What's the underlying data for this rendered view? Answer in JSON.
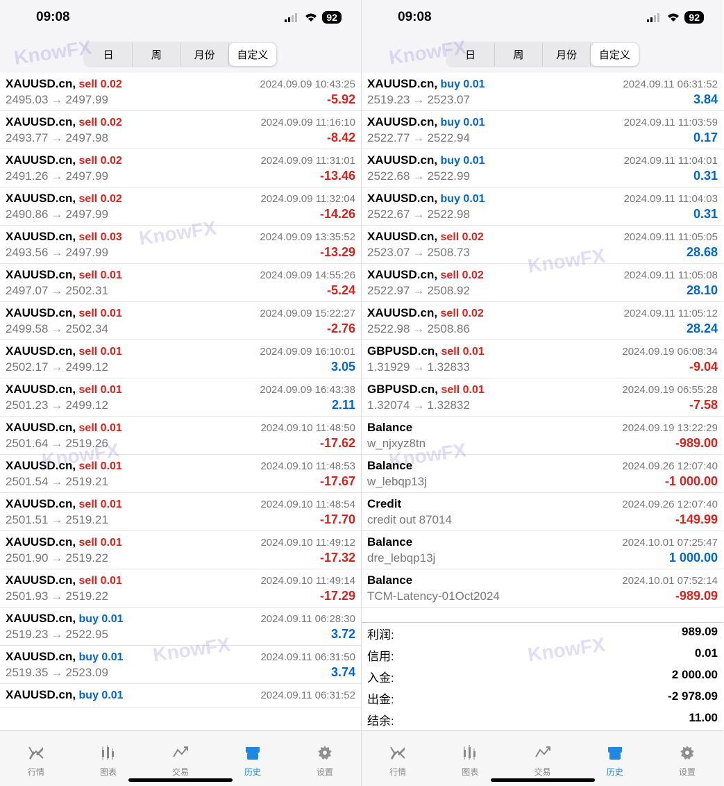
{
  "status": {
    "time": "09:08",
    "battery": "92"
  },
  "segments": {
    "items": [
      "日",
      "周",
      "月份",
      "自定义"
    ],
    "active_index": 3
  },
  "watermark_text": "KnowFX",
  "left_rows": [
    {
      "symbol": "XAUUSD.cn",
      "side": "sell",
      "vol": "0.02",
      "ts": "2024.09.09 10:43:25",
      "p1": "2495.03",
      "p2": "2497.99",
      "profit": "-5.92",
      "sign": "neg"
    },
    {
      "symbol": "XAUUSD.cn",
      "side": "sell",
      "vol": "0.02",
      "ts": "2024.09.09 11:16:10",
      "p1": "2493.77",
      "p2": "2497.98",
      "profit": "-8.42",
      "sign": "neg"
    },
    {
      "symbol": "XAUUSD.cn",
      "side": "sell",
      "vol": "0.02",
      "ts": "2024.09.09 11:31:01",
      "p1": "2491.26",
      "p2": "2497.99",
      "profit": "-13.46",
      "sign": "neg"
    },
    {
      "symbol": "XAUUSD.cn",
      "side": "sell",
      "vol": "0.02",
      "ts": "2024.09.09 11:32:04",
      "p1": "2490.86",
      "p2": "2497.99",
      "profit": "-14.26",
      "sign": "neg"
    },
    {
      "symbol": "XAUUSD.cn",
      "side": "sell",
      "vol": "0.03",
      "ts": "2024.09.09 13:35:52",
      "p1": "2493.56",
      "p2": "2497.99",
      "profit": "-13.29",
      "sign": "neg"
    },
    {
      "symbol": "XAUUSD.cn",
      "side": "sell",
      "vol": "0.01",
      "ts": "2024.09.09 14:55:26",
      "p1": "2497.07",
      "p2": "2502.31",
      "profit": "-5.24",
      "sign": "neg"
    },
    {
      "symbol": "XAUUSD.cn",
      "side": "sell",
      "vol": "0.01",
      "ts": "2024.09.09 15:22:27",
      "p1": "2499.58",
      "p2": "2502.34",
      "profit": "-2.76",
      "sign": "neg"
    },
    {
      "symbol": "XAUUSD.cn",
      "side": "sell",
      "vol": "0.01",
      "ts": "2024.09.09 16:10:01",
      "p1": "2502.17",
      "p2": "2499.12",
      "profit": "3.05",
      "sign": "pos"
    },
    {
      "symbol": "XAUUSD.cn",
      "side": "sell",
      "vol": "0.01",
      "ts": "2024.09.09 16:43:38",
      "p1": "2501.23",
      "p2": "2499.12",
      "profit": "2.11",
      "sign": "pos"
    },
    {
      "symbol": "XAUUSD.cn",
      "side": "sell",
      "vol": "0.01",
      "ts": "2024.09.10 11:48:50",
      "p1": "2501.64",
      "p2": "2519.26",
      "profit": "-17.62",
      "sign": "neg"
    },
    {
      "symbol": "XAUUSD.cn",
      "side": "sell",
      "vol": "0.01",
      "ts": "2024.09.10 11:48:53",
      "p1": "2501.54",
      "p2": "2519.21",
      "profit": "-17.67",
      "sign": "neg"
    },
    {
      "symbol": "XAUUSD.cn",
      "side": "sell",
      "vol": "0.01",
      "ts": "2024.09.10 11:48:54",
      "p1": "2501.51",
      "p2": "2519.21",
      "profit": "-17.70",
      "sign": "neg"
    },
    {
      "symbol": "XAUUSD.cn",
      "side": "sell",
      "vol": "0.01",
      "ts": "2024.09.10 11:49:12",
      "p1": "2501.90",
      "p2": "2519.22",
      "profit": "-17.32",
      "sign": "neg"
    },
    {
      "symbol": "XAUUSD.cn",
      "side": "sell",
      "vol": "0.01",
      "ts": "2024.09.10 11:49:14",
      "p1": "2501.93",
      "p2": "2519.22",
      "profit": "-17.29",
      "sign": "neg"
    },
    {
      "symbol": "XAUUSD.cn",
      "side": "buy",
      "vol": "0.01",
      "ts": "2024.09.11 06:28:30",
      "p1": "2519.23",
      "p2": "2522.95",
      "profit": "3.72",
      "sign": "pos"
    },
    {
      "symbol": "XAUUSD.cn",
      "side": "buy",
      "vol": "0.01",
      "ts": "2024.09.11 06:31:50",
      "p1": "2519.35",
      "p2": "2523.09",
      "profit": "3.74",
      "sign": "pos"
    },
    {
      "symbol": "XAUUSD.cn",
      "side": "buy",
      "vol": "0.01",
      "ts": "2024.09.11 06:31:52",
      "p1": "",
      "p2": "",
      "profit": "",
      "sign": "pos"
    }
  ],
  "right_rows": [
    {
      "type": "trade",
      "symbol": "XAUUSD.cn",
      "side": "buy",
      "vol": "0.01",
      "ts": "2024.09.11 06:31:52",
      "p1": "2519.23",
      "p2": "2523.07",
      "profit": "3.84",
      "sign": "pos"
    },
    {
      "type": "trade",
      "symbol": "XAUUSD.cn",
      "side": "buy",
      "vol": "0.01",
      "ts": "2024.09.11 11:03:59",
      "p1": "2522.77",
      "p2": "2522.94",
      "profit": "0.17",
      "sign": "pos"
    },
    {
      "type": "trade",
      "symbol": "XAUUSD.cn",
      "side": "buy",
      "vol": "0.01",
      "ts": "2024.09.11 11:04:01",
      "p1": "2522.68",
      "p2": "2522.99",
      "profit": "0.31",
      "sign": "pos"
    },
    {
      "type": "trade",
      "symbol": "XAUUSD.cn",
      "side": "buy",
      "vol": "0.01",
      "ts": "2024.09.11 11:04:03",
      "p1": "2522.67",
      "p2": "2522.98",
      "profit": "0.31",
      "sign": "pos"
    },
    {
      "type": "trade",
      "symbol": "XAUUSD.cn",
      "side": "sell",
      "vol": "0.02",
      "ts": "2024.09.11 11:05:05",
      "p1": "2523.07",
      "p2": "2508.73",
      "profit": "28.68",
      "sign": "pos"
    },
    {
      "type": "trade",
      "symbol": "XAUUSD.cn",
      "side": "sell",
      "vol": "0.02",
      "ts": "2024.09.11 11:05:08",
      "p1": "2522.97",
      "p2": "2508.92",
      "profit": "28.10",
      "sign": "pos"
    },
    {
      "type": "trade",
      "symbol": "XAUUSD.cn",
      "side": "sell",
      "vol": "0.02",
      "ts": "2024.09.11 11:05:12",
      "p1": "2522.98",
      "p2": "2508.86",
      "profit": "28.24",
      "sign": "pos"
    },
    {
      "type": "trade",
      "symbol": "GBPUSD.cn",
      "side": "sell",
      "vol": "0.01",
      "ts": "2024.09.19 06:08:34",
      "p1": "1.31929",
      "p2": "1.32833",
      "profit": "-9.04",
      "sign": "neg"
    },
    {
      "type": "trade",
      "symbol": "GBPUSD.cn",
      "side": "sell",
      "vol": "0.01",
      "ts": "2024.09.19 06:55:28",
      "p1": "1.32074",
      "p2": "1.32832",
      "profit": "-7.58",
      "sign": "neg"
    },
    {
      "type": "op",
      "label": "Balance",
      "note": "w_njxyz8tn",
      "ts": "2024.09.19 13:22:29",
      "profit": "-989.00",
      "sign": "neg"
    },
    {
      "type": "op",
      "label": "Balance",
      "note": "w_lebqp13j",
      "ts": "2024.09.26 12:07:40",
      "profit": "-1 000.00",
      "sign": "neg"
    },
    {
      "type": "op",
      "label": "Credit",
      "note": "credit out 87014",
      "ts": "2024.09.26 12:07:40",
      "profit": "-149.99",
      "sign": "neg"
    },
    {
      "type": "op",
      "label": "Balance",
      "note": "dre_lebqp13j",
      "ts": "2024.10.01 07:25:47",
      "profit": "1 000.00",
      "sign": "pos"
    },
    {
      "type": "op",
      "label": "Balance",
      "note": "TCM-Latency-01Oct2024",
      "ts": "2024.10.01 07:52:14",
      "profit": "-989.09",
      "sign": "neg"
    }
  ],
  "summary": [
    {
      "k": "利润:",
      "v": "989.09"
    },
    {
      "k": "信用:",
      "v": "0.01"
    },
    {
      "k": "入金:",
      "v": "2 000.00"
    },
    {
      "k": "出金:",
      "v": "-2 978.09"
    },
    {
      "k": "结余:",
      "v": "11.00"
    }
  ],
  "tabs": [
    {
      "label": "行情",
      "icon": "quotes-icon"
    },
    {
      "label": "图表",
      "icon": "chart-icon"
    },
    {
      "label": "交易",
      "icon": "trade-icon"
    },
    {
      "label": "历史",
      "icon": "history-icon",
      "active": true
    },
    {
      "label": "设置",
      "icon": "settings-icon"
    }
  ],
  "colors": {
    "sell": "#d9221c",
    "buy": "#0066d6",
    "neg": "#d9221c",
    "pos": "#0066d6",
    "active_tab": "#1e88e5",
    "muted": "#777"
  }
}
